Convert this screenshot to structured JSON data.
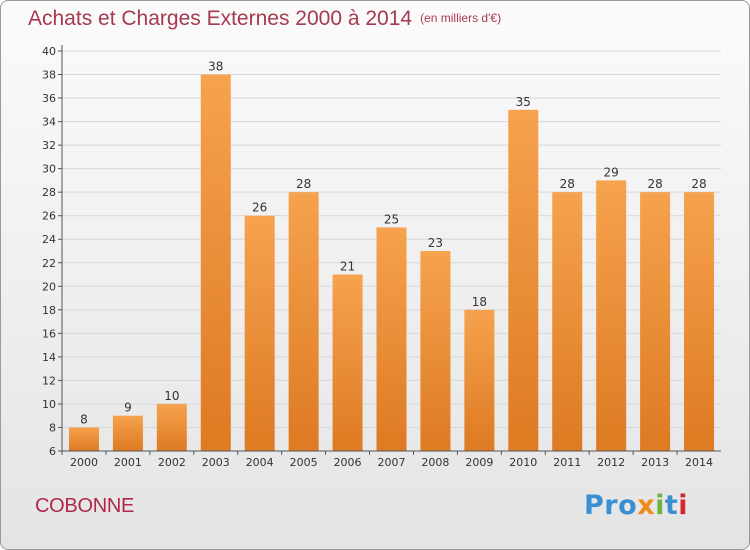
{
  "header": {
    "title": "Achats et Charges Externes 2000 à 2014",
    "subtitle": "(en milliers d'€)"
  },
  "commune": "COBONNE",
  "logo": {
    "text": "Proxiti",
    "letter_colors": [
      "#3a8fd0",
      "#3a8fd0",
      "#3a8fd0",
      "#f08a1a",
      "#6cb33f",
      "#3a8fd0",
      "#d8262e"
    ]
  },
  "colors": {
    "bar_light": "#f6a24e",
    "bar_dark": "#dd7a22",
    "grid": "#d8d8d8",
    "axis": "#555555"
  },
  "chart_data": {
    "type": "bar",
    "categories": [
      "2000",
      "2001",
      "2002",
      "2003",
      "2004",
      "2005",
      "2006",
      "2007",
      "2008",
      "2009",
      "2010",
      "2011",
      "2012",
      "2013",
      "2014"
    ],
    "values": [
      8,
      9,
      10,
      38,
      26,
      28,
      21,
      25,
      23,
      18,
      35,
      28,
      29,
      28,
      28
    ],
    "title": "Achats et Charges Externes 2000 à 2014",
    "subtitle": "(en milliers d'€)",
    "xlabel": "",
    "ylabel": "",
    "ylim": [
      6,
      40
    ],
    "yticks": [
      6,
      8,
      10,
      12,
      14,
      16,
      18,
      20,
      22,
      24,
      26,
      28,
      30,
      32,
      34,
      36,
      38,
      40
    ],
    "grid": true,
    "data_labels": true
  }
}
